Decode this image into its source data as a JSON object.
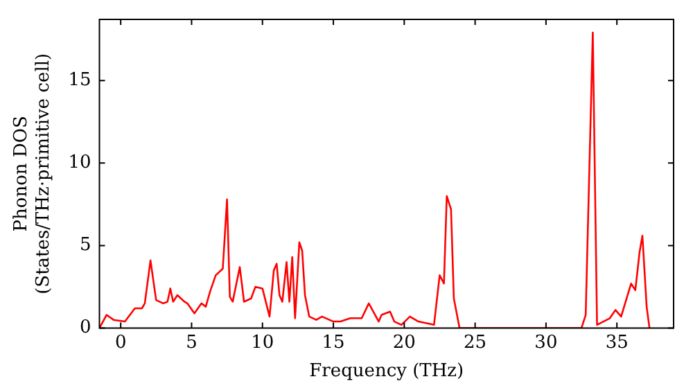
{
  "chart_data": {
    "type": "line",
    "xlabel": "Frequency (THz)",
    "ylabel": "Phonon DOS\n(States/THz·primitive cell)",
    "xlim": [
      -1.5,
      39
    ],
    "ylim": [
      0,
      18.7
    ],
    "xticks": [
      0,
      5,
      10,
      15,
      20,
      25,
      30,
      35
    ],
    "yticks": [
      0,
      5,
      10,
      15
    ],
    "grid": false,
    "legend": false,
    "marker": "none",
    "line_style": "solid",
    "series": [
      {
        "color": "#ff0000",
        "x": [
          -1.5,
          -1,
          -0.5,
          0.3,
          1.0,
          1.5,
          1.7,
          2.1,
          2.5,
          3.0,
          3.3,
          3.5,
          3.7,
          4.0,
          4.5,
          4.7,
          5.2,
          5.7,
          6.0,
          6.3,
          6.7,
          7.2,
          7.5,
          7.7,
          7.9,
          8.4,
          8.7,
          9.2,
          9.5,
          10.0,
          10.5,
          10.8,
          11.0,
          11.2,
          11.4,
          11.7,
          11.9,
          12.1,
          12.3,
          12.6,
          12.8,
          13.0,
          13.3,
          13.8,
          14.2,
          15.0,
          15.5,
          16.2,
          17.0,
          17.5,
          18.2,
          18.4,
          19.0,
          19.3,
          19.8,
          20.4,
          21.0,
          22.1,
          22.5,
          22.8,
          23.0,
          23.3,
          23.5,
          23.9,
          32.5,
          32.8,
          33.3,
          33.6,
          34.5,
          34.9,
          35.3,
          36.0,
          36.3,
          36.6,
          36.8,
          37.1,
          37.3
        ],
        "values": [
          0,
          0.8,
          0.5,
          0.4,
          1.2,
          1.2,
          1.5,
          4.1,
          1.7,
          1.5,
          1.6,
          2.4,
          1.6,
          2.0,
          1.6,
          1.5,
          0.9,
          1.5,
          1.3,
          2.2,
          3.2,
          3.6,
          7.8,
          1.9,
          1.6,
          3.7,
          1.6,
          1.8,
          2.5,
          2.4,
          0.7,
          3.5,
          3.9,
          2.0,
          1.6,
          4.0,
          1.6,
          4.3,
          0.6,
          5.2,
          4.7,
          2.0,
          0.7,
          0.5,
          0.7,
          0.4,
          0.4,
          0.6,
          0.6,
          1.5,
          0.4,
          0.8,
          1.0,
          0.4,
          0.2,
          0.7,
          0.4,
          0.2,
          3.2,
          2.7,
          8.0,
          7.2,
          1.8,
          0,
          0,
          0.8,
          17.9,
          0.2,
          0.6,
          1.1,
          0.7,
          2.7,
          2.3,
          4.6,
          5.6,
          1.3,
          0
        ]
      }
    ]
  }
}
